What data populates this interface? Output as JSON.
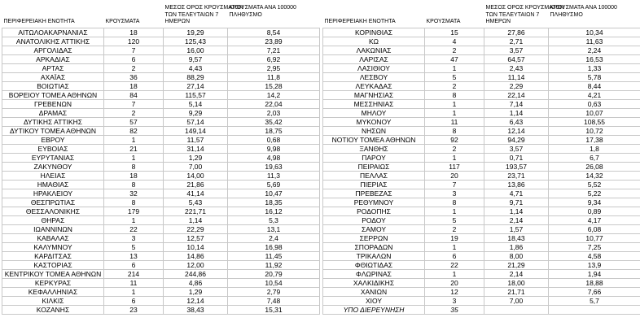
{
  "headers": {
    "region": "ΠΕΡΙΦΕΡΕΙΑΚΗ ΕΝΟΤΗΤΑ",
    "cases": "ΚΡΟΥΣΜΑΤΑ",
    "avg_7d": "ΜΕΣΟΣ ΟΡΟΣ ΚΡΟΥΣΜΑΤΩΝ\nΤΩΝ ΤΕΛΕΥΤΑΙΩΝ 7\nΗΜΕΡΩΝ",
    "per_100k": "ΚΡΟΥΣΜΑΤΑ ΑΝΑ 100000\nΠΛΗΘΥΣΜΟ"
  },
  "left_table": {
    "rows": [
      [
        "ΑΙΤΩΛΟΑΚΑΡΝΑΝΙΑΣ",
        "18",
        "19,29",
        "8,54"
      ],
      [
        "ΑΝΑΤΟΛΙΚΗΣ ΑΤΤΙΚΗΣ",
        "120",
        "125,43",
        "23,89"
      ],
      [
        "ΑΡΓΟΛΙΔΑΣ",
        "7",
        "16,00",
        "7,21"
      ],
      [
        "ΑΡΚΑΔΙΑΣ",
        "6",
        "9,57",
        "6,92"
      ],
      [
        "ΑΡΤΑΣ",
        "2",
        "4,43",
        "2,95"
      ],
      [
        "ΑΧΑΪΑΣ",
        "36",
        "88,29",
        "11,8"
      ],
      [
        "ΒΟΙΩΤΙΑΣ",
        "18",
        "27,14",
        "15,28"
      ],
      [
        "ΒΟΡΕΙΟΥ ΤΟΜΕΑ ΑΘΗΝΩΝ",
        "84",
        "115,57",
        "14,2"
      ],
      [
        "ΓΡΕΒΕΝΩΝ",
        "7",
        "5,14",
        "22,04"
      ],
      [
        "ΔΡΑΜΑΣ",
        "2",
        "9,29",
        "2,03"
      ],
      [
        "ΔΥΤΙΚΗΣ ΑΤΤΙΚΗΣ",
        "57",
        "57,14",
        "35,42"
      ],
      [
        "ΔΥΤΙΚΟΥ ΤΟΜΕΑ ΑΘΗΝΩΝ",
        "82",
        "149,14",
        "18,75"
      ],
      [
        "ΕΒΡΟΥ",
        "1",
        "11,57",
        "0,68"
      ],
      [
        "ΕΥΒΟΙΑΣ",
        "21",
        "31,14",
        "9,98"
      ],
      [
        "ΕΥΡΥΤΑΝΙΑΣ",
        "1",
        "1,29",
        "4,98"
      ],
      [
        "ΖΑΚΥΝΘΟΥ",
        "8",
        "7,00",
        "19,63"
      ],
      [
        "ΗΛΕΙΑΣ",
        "18",
        "14,00",
        "11,3"
      ],
      [
        "ΗΜΑΘΙΑΣ",
        "8",
        "21,86",
        "5,69"
      ],
      [
        "ΗΡΑΚΛΕΙΟΥ",
        "32",
        "41,14",
        "10,47"
      ],
      [
        "ΘΕΣΠΡΩΤΙΑΣ",
        "8",
        "5,43",
        "18,35"
      ],
      [
        "ΘΕΣΣΑΛΟΝΙΚΗΣ",
        "179",
        "221,71",
        "16,12"
      ],
      [
        "ΘΗΡΑΣ",
        "1",
        "1,14",
        "5,3"
      ],
      [
        "ΙΩΑΝΝΙΝΩΝ",
        "22",
        "22,29",
        "13,1"
      ],
      [
        "ΚΑΒΑΛΑΣ",
        "3",
        "12,57",
        "2,4"
      ],
      [
        "ΚΑΛΥΜΝΟΥ",
        "5",
        "10,14",
        "16,98"
      ],
      [
        "ΚΑΡΔΙΤΣΑΣ",
        "13",
        "14,86",
        "11,45"
      ],
      [
        "ΚΑΣΤΟΡΙΑΣ",
        "6",
        "12,00",
        "11,92"
      ],
      [
        "ΚΕΝΤΡΙΚΟΥ ΤΟΜΕΑ ΑΘΗΝΩΝ",
        "214",
        "244,86",
        "20,79"
      ],
      [
        "ΚΕΡΚΥΡΑΣ",
        "11",
        "4,86",
        "10,54"
      ],
      [
        "ΚΕΦΑΛΛΗΝΙΑΣ",
        "1",
        "1,29",
        "2,79"
      ],
      [
        "ΚΙΛΚΙΣ",
        "6",
        "12,14",
        "7,48"
      ],
      [
        "ΚΟΖΑΝΗΣ",
        "23",
        "38,43",
        "15,31"
      ]
    ]
  },
  "right_table": {
    "rows": [
      [
        "ΚΟΡΙΝΘΙΑΣ",
        "15",
        "27,86",
        "10,34"
      ],
      [
        "ΚΩ",
        "4",
        "2,71",
        "11,63"
      ],
      [
        "ΛΑΚΩΝΙΑΣ",
        "2",
        "3,57",
        "2,24"
      ],
      [
        "ΛΑΡΙΣΑΣ",
        "47",
        "64,57",
        "16,53"
      ],
      [
        "ΛΑΣΙΘΙΟΥ",
        "1",
        "2,43",
        "1,33"
      ],
      [
        "ΛΕΣΒΟΥ",
        "5",
        "11,14",
        "5,78"
      ],
      [
        "ΛΕΥΚΑΔΑΣ",
        "2",
        "2,29",
        "8,44"
      ],
      [
        "ΜΑΓΝΗΣΙΑΣ",
        "8",
        "22,14",
        "4,21"
      ],
      [
        "ΜΕΣΣΗΝΙΑΣ",
        "1",
        "7,14",
        "0,63"
      ],
      [
        "ΜΗΛΟΥ",
        "1",
        "1,14",
        "10,07"
      ],
      [
        "ΜΥΚΟΝΟΥ",
        "11",
        "6,43",
        "108,55"
      ],
      [
        "ΝΗΣΩΝ",
        "8",
        "12,14",
        "10,72"
      ],
      [
        "ΝΟΤΙΟΥ ΤΟΜΕΑ ΑΘΗΝΩΝ",
        "92",
        "94,29",
        "17,38"
      ],
      [
        "ΞΑΝΘΗΣ",
        "2",
        "3,57",
        "1,8"
      ],
      [
        "ΠΑΡΟΥ",
        "1",
        "0,71",
        "6,7"
      ],
      [
        "ΠΕΙΡΑΙΩΣ",
        "117",
        "193,57",
        "26,08"
      ],
      [
        "ΠΕΛΛΑΣ",
        "20",
        "23,71",
        "14,32"
      ],
      [
        "ΠΙΕΡΙΑΣ",
        "7",
        "13,86",
        "5,52"
      ],
      [
        "ΠΡΕΒΕΖΑΣ",
        "3",
        "4,71",
        "5,22"
      ],
      [
        "ΡΕΘΥΜΝΟΥ",
        "8",
        "9,71",
        "9,34"
      ],
      [
        "ΡΟΔΟΠΗΣ",
        "1",
        "1,14",
        "0,89"
      ],
      [
        "ΡΟΔΟΥ",
        "5",
        "2,14",
        "4,17"
      ],
      [
        "ΣΑΜΟΥ",
        "2",
        "1,57",
        "6,08"
      ],
      [
        "ΣΕΡΡΩΝ",
        "19",
        "18,43",
        "10,77"
      ],
      [
        "ΣΠΟΡΑΔΩΝ",
        "1",
        "1,86",
        "7,25"
      ],
      [
        "ΤΡΙΚΑΛΩΝ",
        "6",
        "8,00",
        "4,58"
      ],
      [
        "ΦΘΙΩΤΙΔΑΣ",
        "22",
        "21,29",
        "13,9"
      ],
      [
        "ΦΛΩΡΙΝΑΣ",
        "1",
        "2,14",
        "1,94"
      ],
      [
        "ΧΑΛΚΙΔΙΚΗΣ",
        "20",
        "18,00",
        "18,88"
      ],
      [
        "ΧΑΝΙΩΝ",
        "12",
        "21,71",
        "7,66"
      ],
      [
        "ΧΙΟΥ",
        "3",
        "7,00",
        "5,7"
      ]
    ],
    "footer_row": {
      "label": "ΥΠΟ ΔΙΕΡΕΥΝΗΣΗ",
      "cases": "35"
    }
  }
}
